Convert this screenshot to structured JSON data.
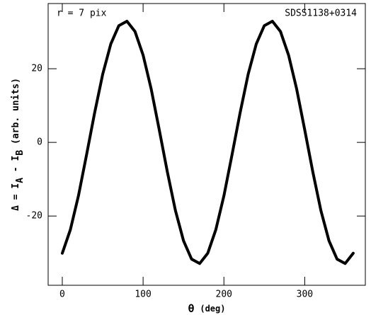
{
  "chart_data": {
    "type": "line",
    "annotations": [
      "r = 7 pix",
      "SDSS1138+0314"
    ],
    "xlabel": [
      "θ",
      "(deg)"
    ],
    "ylabel": [
      "Δ = I",
      "A",
      " - I",
      "B",
      " (arb. units)"
    ],
    "x": [
      0,
      10,
      20,
      30,
      40,
      50,
      60,
      70,
      80,
      90,
      100,
      110,
      120,
      130,
      140,
      150,
      160,
      170,
      180,
      190,
      200,
      210,
      220,
      230,
      240,
      250,
      260,
      270,
      280,
      290,
      300,
      310,
      320,
      330,
      340,
      350,
      360
    ],
    "series": [
      {
        "color": "#000000",
        "values": [
          -30.1,
          -23.7,
          -14.5,
          -3.4,
          8.0,
          18.5,
          26.7,
          31.7,
          32.9,
          30.1,
          23.7,
          14.5,
          3.4,
          -8.0,
          -18.5,
          -26.7,
          -31.7,
          -32.9,
          -30.1,
          -23.7,
          -14.5,
          -3.4,
          8.0,
          18.5,
          26.7,
          31.7,
          32.9,
          30.1,
          23.7,
          14.5,
          3.4,
          -8.0,
          -18.5,
          -26.7,
          -31.7,
          -32.9,
          -30.1
        ]
      }
    ],
    "xlim": [
      -17.5,
      375
    ],
    "ylim": [
      -38.8,
      37.7
    ],
    "xticks": [
      0,
      100,
      200,
      300
    ],
    "yticks": [
      -20,
      0,
      20
    ]
  }
}
